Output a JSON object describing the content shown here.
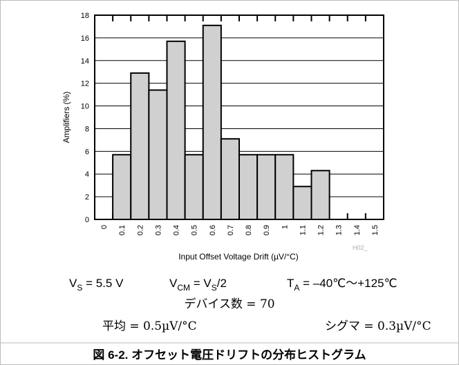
{
  "chart_data": {
    "type": "bar",
    "categories": [
      "0",
      "0.1",
      "0.2",
      "0.3",
      "0.4",
      "0.5",
      "0.6",
      "0.7",
      "0.8",
      "0.9",
      "1",
      "1.1",
      "1.2",
      "1.3",
      "1.4",
      "1.5"
    ],
    "values": [
      0,
      5.7,
      12.9,
      11.4,
      15.7,
      5.7,
      17.1,
      7.1,
      5.7,
      5.7,
      5.7,
      2.9,
      4.3,
      0,
      0,
      0
    ],
    "color": "#d0d0d0",
    "ylim": [
      0,
      18
    ],
    "yticks": [
      0,
      2,
      4,
      6,
      8,
      10,
      12,
      14,
      16,
      18
    ],
    "grid": true,
    "y_label": "Amplifiers (%)",
    "x_label": "Input Offset Voltage Drift (µV/°C)",
    "code": "H02_",
    "conditions": [
      [
        "V",
        "S",
        " = 5.5 V"
      ],
      [
        "V",
        "CM",
        " = V",
        "S",
        "/2"
      ],
      [
        "T",
        "A",
        " = –40℃～+125℃"
      ]
    ],
    "device_count": "デバイス数 = 70",
    "mean": "平均 = 0.5µV/°C",
    "sigma": "シグマ = 0.3µV/°C",
    "caption": "図 6-2. オフセット電圧ドリフトの分布ヒストグラム"
  }
}
